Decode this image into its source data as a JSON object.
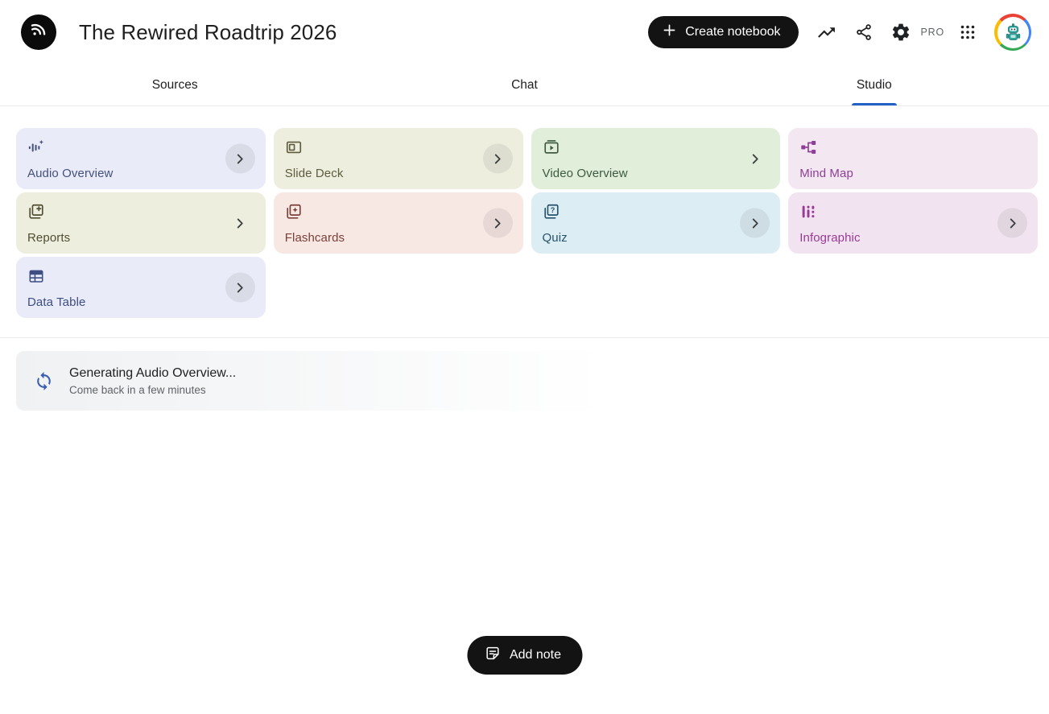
{
  "header": {
    "title": "The Rewired Roadtrip 2026",
    "create_button": "Create notebook",
    "pro_label": "PRO"
  },
  "tabs": [
    {
      "label": "Sources",
      "active": false
    },
    {
      "label": "Chat",
      "active": false
    },
    {
      "label": "Studio",
      "active": true
    }
  ],
  "studio": {
    "cards": [
      {
        "id": "audio-overview",
        "label": "Audio Overview",
        "bg": "#e9ebf8",
        "fg": "#44517b",
        "chevron": "circle"
      },
      {
        "id": "slide-deck",
        "label": "Slide Deck",
        "bg": "#eeeedf",
        "fg": "#5e5b3e",
        "chevron": "circle"
      },
      {
        "id": "video-overview",
        "label": "Video Overview",
        "bg": "#e0eeda",
        "fg": "#3f5a42",
        "chevron": "plain"
      },
      {
        "id": "mind-map",
        "label": "Mind Map",
        "bg": "#f3e7f1",
        "fg": "#8d3f97",
        "chevron": "none"
      },
      {
        "id": "reports",
        "label": "Reports",
        "bg": "#edeede",
        "fg": "#514d33",
        "chevron": "plain"
      },
      {
        "id": "flashcards",
        "label": "Flashcards",
        "bg": "#f8e8e4",
        "fg": "#7a4039",
        "chevron": "circle"
      },
      {
        "id": "quiz",
        "label": "Quiz",
        "bg": "#dcedf3",
        "fg": "#27536b",
        "chevron": "circle"
      },
      {
        "id": "infographic",
        "label": "Infographic",
        "bg": "#f1e4f0",
        "fg": "#9a3a96",
        "chevron": "circle"
      },
      {
        "id": "data-table",
        "label": "Data Table",
        "bg": "#e9ebf8",
        "fg": "#3e4e82",
        "chevron": "circle"
      }
    ],
    "status": {
      "title": "Generating Audio Overview...",
      "subtitle": "Come back in a few minutes"
    },
    "add_note_label": "Add note"
  },
  "colors": {
    "accent_blue": "#2160c4",
    "pill_black": "#131314",
    "status_icon_blue": "#3a5eb0"
  }
}
